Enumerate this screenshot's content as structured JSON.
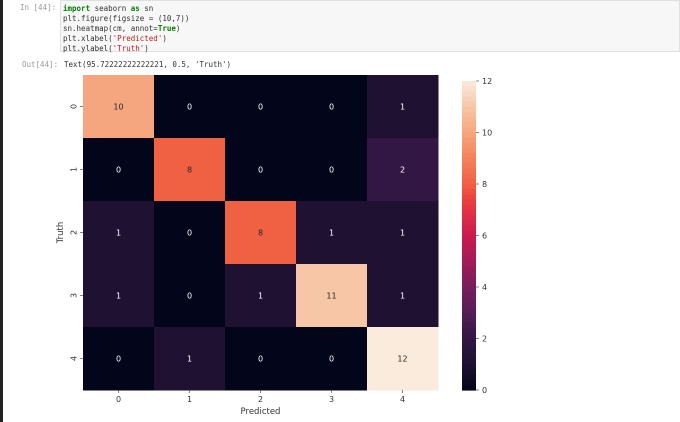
{
  "cell": {
    "in_prompt": "In [44]:",
    "code_lines": [
      [
        {
          "t": "import",
          "c": "kw"
        },
        {
          "t": " seaborn "
        },
        {
          "t": "as",
          "c": "kw"
        },
        {
          "t": " sn"
        }
      ],
      [
        {
          "t": "plt.figure(figsize = (10,7))"
        }
      ],
      [
        {
          "t": "sn.heatmap(cm, annot="
        },
        {
          "t": "True",
          "c": "kw"
        },
        {
          "t": ")"
        }
      ],
      [
        {
          "t": "plt.xlabel("
        },
        {
          "t": "'Predicted'",
          "c": "str"
        },
        {
          "t": ")"
        }
      ],
      [
        {
          "t": "plt.ylabel("
        },
        {
          "t": "'Truth'",
          "c": "str"
        },
        {
          "t": ")"
        }
      ]
    ],
    "out_prompt": "Out[44]:",
    "output_text": "Text(95.72222222222221, 0.5, 'Truth')"
  },
  "chart_data": {
    "type": "heatmap",
    "colormap": "rocket",
    "xlabel": "Predicted",
    "ylabel": "Truth",
    "x_categories": [
      "0",
      "1",
      "2",
      "3",
      "4"
    ],
    "y_categories": [
      "0",
      "1",
      "2",
      "3",
      "4"
    ],
    "values": [
      [
        10,
        0,
        0,
        0,
        1
      ],
      [
        0,
        8,
        0,
        0,
        2
      ],
      [
        1,
        0,
        8,
        1,
        1
      ],
      [
        1,
        0,
        1,
        11,
        1
      ],
      [
        0,
        1,
        0,
        0,
        12
      ]
    ],
    "colorbar": {
      "range": [
        0,
        12
      ],
      "ticks": [
        "0",
        "2",
        "4",
        "6",
        "8",
        "10",
        "12"
      ]
    }
  }
}
